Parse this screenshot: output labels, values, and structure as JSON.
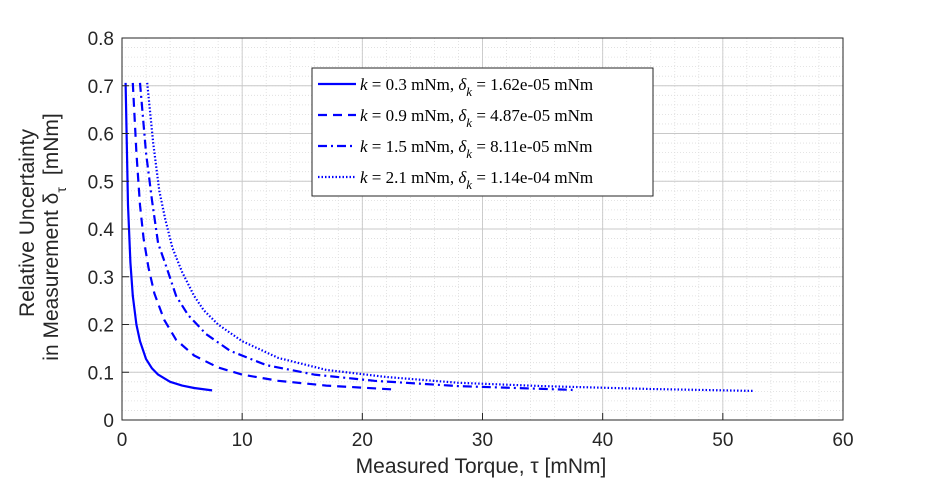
{
  "chart_data": {
    "type": "line",
    "xlabel": "Measured Torque, τ  [mNm]",
    "ylabel_line1": "Relative Uncertainty",
    "ylabel_line2": "in Measurement δ",
    "ylabel_sub": "τ",
    "ylabel_unit": "[mNm]",
    "xlim": [
      0,
      60
    ],
    "ylim": [
      0,
      0.8
    ],
    "xticks": [
      0,
      10,
      20,
      30,
      40,
      50,
      60
    ],
    "xtick_labels": [
      "0",
      "10",
      "20",
      "30",
      "40",
      "50",
      "60"
    ],
    "yticks": [
      0,
      0.1,
      0.2,
      0.3,
      0.4,
      0.5,
      0.6,
      0.7,
      0.8
    ],
    "ytick_labels": [
      "0",
      "0.1",
      "0.2",
      "0.3",
      "0.4",
      "0.5",
      "0.6",
      "0.7",
      "0.8"
    ],
    "grid": true,
    "minor_grid": true,
    "legend_position": "top-center",
    "line_color": "#0000ff",
    "series": [
      {
        "k_value": "0.3",
        "delta_value": "1.62e-05",
        "style": "solid",
        "x": [
          0.3,
          0.5,
          0.7,
          0.9,
          1.2,
          1.5,
          2.0,
          2.5,
          3.0,
          4.0,
          5.0,
          6.0,
          7.5
        ],
        "y": [
          0.706,
          0.45,
          0.33,
          0.26,
          0.2,
          0.165,
          0.128,
          0.108,
          0.095,
          0.08,
          0.072,
          0.067,
          0.062
        ]
      },
      {
        "k_value": "0.9",
        "delta_value": "4.87e-05",
        "style": "dashed",
        "x": [
          0.9,
          1.2,
          1.5,
          1.8,
          2.2,
          2.7,
          3.5,
          4.5,
          6.0,
          8.0,
          10.0,
          13.0,
          17.0,
          22.5
        ],
        "y": [
          0.706,
          0.56,
          0.45,
          0.38,
          0.32,
          0.265,
          0.21,
          0.168,
          0.135,
          0.11,
          0.095,
          0.082,
          0.072,
          0.064
        ]
      },
      {
        "k_value": "1.5",
        "delta_value": "8.11e-05",
        "style": "dashdot",
        "x": [
          1.5,
          2.0,
          2.5,
          3.0,
          3.7,
          4.5,
          5.5,
          7.0,
          9.0,
          12.0,
          16.0,
          21.0,
          28.0,
          37.5
        ],
        "y": [
          0.706,
          0.56,
          0.46,
          0.37,
          0.32,
          0.26,
          0.22,
          0.18,
          0.145,
          0.115,
          0.095,
          0.082,
          0.071,
          0.063
        ]
      },
      {
        "k_value": "2.1",
        "delta_value": "1.14e-04",
        "style": "dotted",
        "x": [
          2.1,
          2.6,
          3.1,
          3.6,
          4.2,
          5.0,
          6.0,
          6.8,
          8.0,
          10.0,
          13.0,
          17.0,
          22.0,
          28.0,
          35.0,
          44.0,
          52.5
        ],
        "y": [
          0.706,
          0.58,
          0.48,
          0.42,
          0.36,
          0.31,
          0.26,
          0.23,
          0.2,
          0.165,
          0.13,
          0.105,
          0.09,
          0.078,
          0.071,
          0.065,
          0.061
        ]
      }
    ]
  }
}
